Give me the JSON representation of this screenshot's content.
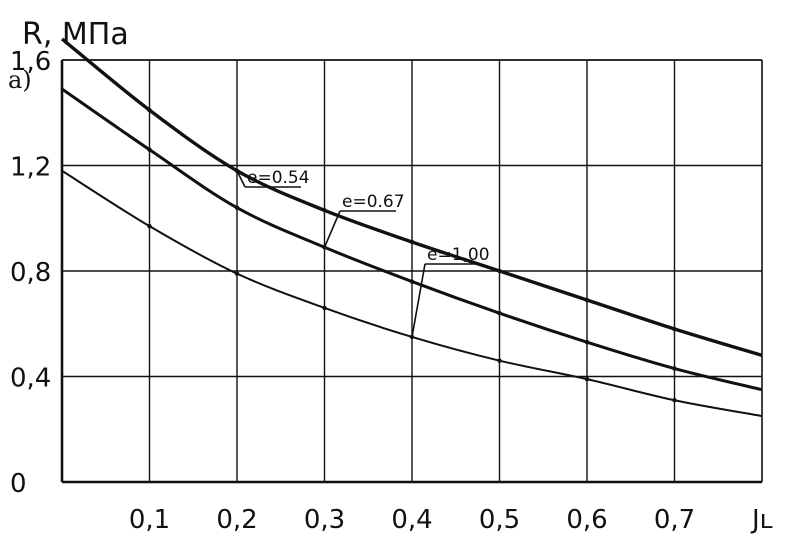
{
  "chart_data": {
    "type": "line",
    "panel_label": "a)",
    "ylabel": "R, МПа",
    "xlabel": "Jʟ",
    "xlim": [
      0,
      0.8
    ],
    "ylim": [
      0,
      1.6
    ],
    "x_ticks": [
      "0,1",
      "0,2",
      "0,3",
      "0,4",
      "0,5",
      "0,6",
      "0,7"
    ],
    "x_tick_values": [
      0.1,
      0.2,
      0.3,
      0.4,
      0.5,
      0.6,
      0.7
    ],
    "y_ticks": [
      "0",
      "0,4",
      "0,8",
      "1,2",
      "1,6"
    ],
    "y_tick_values": [
      0,
      0.4,
      0.8,
      1.2,
      1.6
    ],
    "grid": true,
    "series": [
      {
        "name": "e=0.54",
        "x": [
          0.0,
          0.1,
          0.2,
          0.3,
          0.4,
          0.5,
          0.6,
          0.7,
          0.8
        ],
        "y": [
          1.68,
          1.41,
          1.18,
          1.03,
          0.91,
          0.8,
          0.69,
          0.58,
          0.48
        ],
        "point_x": 0.2
      },
      {
        "name": "e=0.67",
        "x": [
          0.0,
          0.1,
          0.2,
          0.3,
          0.4,
          0.5,
          0.6,
          0.7,
          0.8
        ],
        "y": [
          1.49,
          1.26,
          1.04,
          0.89,
          0.76,
          0.64,
          0.53,
          0.43,
          0.35
        ],
        "point_x": 0.3
      },
      {
        "name": "e=1,00",
        "x": [
          0.0,
          0.1,
          0.2,
          0.3,
          0.4,
          0.5,
          0.6,
          0.7,
          0.8
        ],
        "y": [
          1.18,
          0.97,
          0.79,
          0.66,
          0.55,
          0.46,
          0.39,
          0.31,
          0.25
        ],
        "point_x": 0.4
      }
    ],
    "colors": {
      "line": "#111111",
      "grid": "#111111"
    }
  }
}
